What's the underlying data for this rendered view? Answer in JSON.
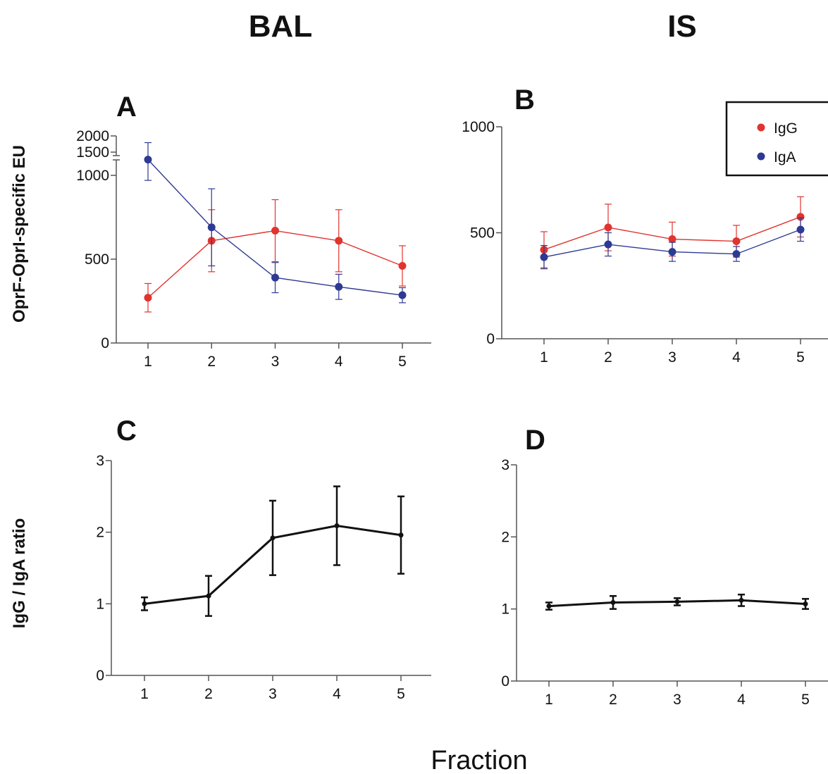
{
  "figure": {
    "column_titles": [
      "BAL",
      "IS"
    ],
    "ylabel_top": "OprF-OprI-specific EU",
    "ylabel_bottom": "IgG / IgA ratio",
    "xlabel": "Fraction"
  },
  "legend": [
    {
      "label": "IgG",
      "color": "#e0342f"
    },
    {
      "label": "IgA",
      "color": "#2e3a92"
    }
  ],
  "chart_data": [
    {
      "panel": "A",
      "type": "line",
      "x": [
        1,
        2,
        3,
        4,
        5
      ],
      "xticks": [
        "1",
        "2",
        "3",
        "4",
        "5"
      ],
      "ylim": [
        0,
        2000
      ],
      "yticks": [
        "0",
        "500",
        "1000",
        "1500",
        "2000"
      ],
      "y_axis_break": [
        1000,
        1500
      ],
      "grid": false,
      "series": [
        {
          "name": "IgG",
          "color": "#e0342f",
          "values": [
            270,
            610,
            670,
            610,
            460
          ],
          "err": [
            85,
            185,
            185,
            185,
            120
          ]
        },
        {
          "name": "IgA",
          "color": "#2e3a92",
          "values": [
            1400,
            690,
            390,
            335,
            285
          ],
          "err": [
            430,
            230,
            90,
            75,
            45
          ]
        }
      ]
    },
    {
      "panel": "B",
      "type": "line",
      "x": [
        1,
        2,
        3,
        4,
        5
      ],
      "xticks": [
        "1",
        "2",
        "3",
        "4",
        "5"
      ],
      "ylim": [
        0,
        1000
      ],
      "yticks": [
        "0",
        "500",
        "1000"
      ],
      "legend_position": "top-right",
      "grid": false,
      "series": [
        {
          "name": "IgG",
          "color": "#e0342f",
          "values": [
            420,
            525,
            470,
            460,
            575
          ],
          "err": [
            85,
            110,
            80,
            75,
            95
          ]
        },
        {
          "name": "IgA",
          "color": "#2e3a92",
          "values": [
            385,
            445,
            410,
            400,
            515
          ],
          "err": [
            55,
            55,
            45,
            35,
            55
          ]
        }
      ]
    },
    {
      "panel": "C",
      "type": "line",
      "x": [
        1,
        2,
        3,
        4,
        5
      ],
      "xticks": [
        "1",
        "2",
        "3",
        "4",
        "5"
      ],
      "ylim": [
        0,
        3
      ],
      "yticks": [
        "0",
        "1",
        "2",
        "3"
      ],
      "grid": false,
      "series": [
        {
          "color": "#111111",
          "values": [
            1.0,
            1.11,
            1.92,
            2.09,
            1.96
          ],
          "err": [
            0.09,
            0.28,
            0.52,
            0.55,
            0.54
          ]
        }
      ]
    },
    {
      "panel": "D",
      "type": "line",
      "x": [
        1,
        2,
        3,
        4,
        5
      ],
      "xticks": [
        "1",
        "2",
        "3",
        "4",
        "5"
      ],
      "ylim": [
        0,
        3
      ],
      "yticks": [
        "0",
        "1",
        "2",
        "3"
      ],
      "grid": false,
      "series": [
        {
          "color": "#111111",
          "values": [
            1.04,
            1.09,
            1.1,
            1.12,
            1.07
          ],
          "err": [
            0.05,
            0.09,
            0.05,
            0.08,
            0.07
          ]
        }
      ]
    }
  ]
}
